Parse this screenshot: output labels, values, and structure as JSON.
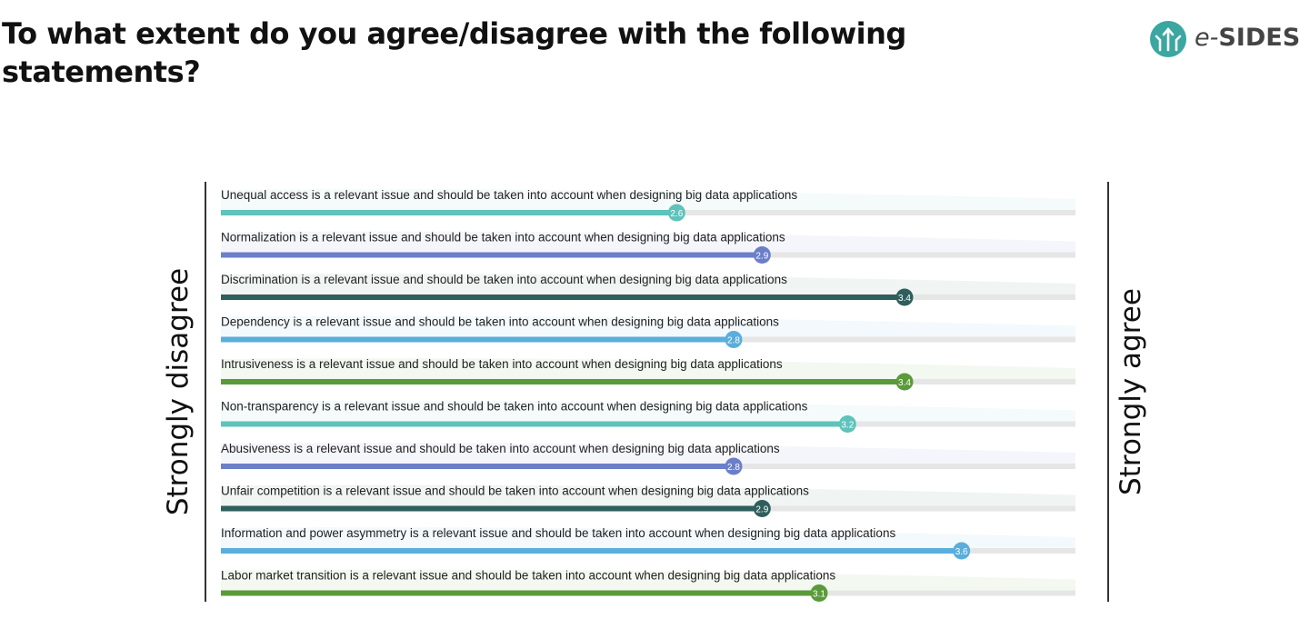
{
  "title": "To what extent do you agree/disagree with the following statements?",
  "logo": {
    "prefix": "e-",
    "name": "SIDES",
    "icon": "arrows-circle-icon",
    "color": "#3aa7a0"
  },
  "left_label": "Strongly disagree",
  "right_label": "Strongly agree",
  "chart_data": {
    "type": "bar",
    "orientation": "horizontal",
    "xlim": [
      1,
      4
    ],
    "categories": [
      "Unequal access is a relevant issue and should be taken into account when designing big data applications",
      "Normalization is a relevant issue and should be taken into account when designing big data applications",
      "Discrimination is a relevant issue and should be taken into account when designing big data applications",
      "Dependency is a relevant issue and should be taken into account when designing big data applications",
      "Intrusiveness is a relevant issue and should be taken into account when designing big data applications",
      "Non-transparency is a relevant issue and should be taken into account when designing big data applications",
      "Abusiveness is a relevant issue and should be taken into account when designing big data applications",
      "Unfair competition is a relevant issue and should be taken into account when designing big data applications",
      "Information and power asymmetry is a relevant issue and should be taken into account when designing big data applications",
      "Labor market transition is a relevant issue and should be taken into account when designing big data applications"
    ],
    "values": [
      2.6,
      2.9,
      3.4,
      2.8,
      3.4,
      3.2,
      2.8,
      2.9,
      3.6,
      3.1
    ],
    "value_labels": [
      "2.6",
      "2.9",
      "3.4",
      "2.8",
      "3.4",
      "3.2",
      "2.8",
      "2.9",
      "3.6",
      "3.1"
    ],
    "colors": [
      "#5ec3bb",
      "#6b7fc9",
      "#2e5f5c",
      "#5aaedc",
      "#5a9a3a",
      "#5ec3bb",
      "#6b7fc9",
      "#2e5f5c",
      "#5aaedc",
      "#5a9a3a"
    ],
    "track_color": "#e6e6e6"
  }
}
